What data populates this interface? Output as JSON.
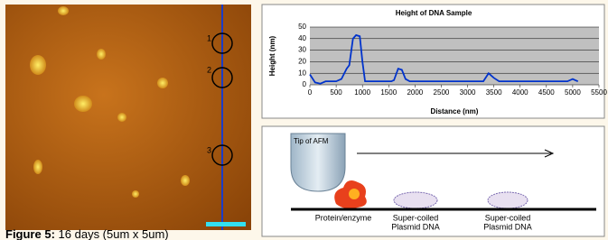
{
  "figure": {
    "caption_label": "Figure 5:",
    "caption_text": "16 days (5um x 5um)"
  },
  "afm_image": {
    "markers": [
      "1",
      "2",
      "3"
    ]
  },
  "chart_data": {
    "type": "line",
    "title": "Height of DNA Sample",
    "x_label": "Distance (nm)",
    "y_label": "Height (nm)",
    "x": [
      0,
      100,
      200,
      300,
      500,
      600,
      700,
      750,
      820,
      880,
      950,
      1000,
      1050,
      1550,
      1600,
      1680,
      1750,
      1820,
      1900,
      3300,
      3400,
      3500,
      3600,
      4900,
      5000,
      5100
    ],
    "values": [
      9,
      2,
      1,
      3,
      3,
      5,
      14,
      17,
      40,
      43,
      42,
      20,
      3,
      3,
      4,
      14,
      13,
      5,
      3,
      3,
      10,
      6,
      3,
      3,
      5,
      3
    ],
    "color": "#0033cc",
    "xlim": [
      0,
      5500
    ],
    "xticks": [
      0,
      500,
      1000,
      1500,
      2000,
      2500,
      3000,
      3500,
      4000,
      4500,
      5000,
      5500
    ],
    "ylim": [
      0,
      50
    ],
    "yticks": [
      0,
      10,
      20,
      30,
      40,
      50
    ],
    "grid": true
  },
  "diagram": {
    "tip_label": "Tip of AFM",
    "items": [
      {
        "lines": [
          "Protein/enzyme"
        ]
      },
      {
        "lines": [
          "Super-coiled",
          "Plasmid DNA"
        ]
      },
      {
        "lines": [
          "Super-coiled",
          "Plasmid DNA"
        ]
      }
    ]
  }
}
